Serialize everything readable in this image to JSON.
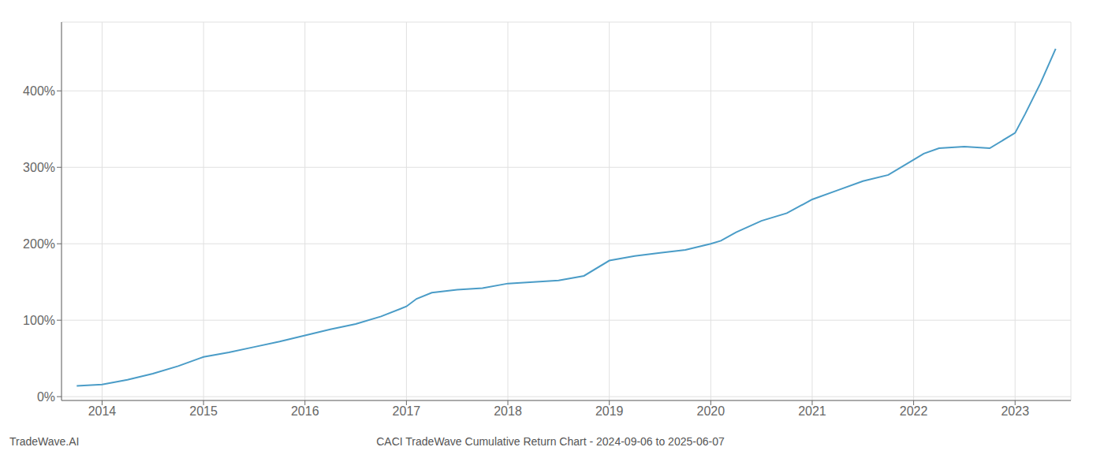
{
  "chart_data": {
    "type": "line",
    "title": "CACI TradeWave Cumulative Return Chart - 2024-09-06 to 2025-06-07",
    "annotations": [
      "TradeWave.AI"
    ],
    "x": [
      2013.75,
      2014.0,
      2014.25,
      2014.5,
      2014.75,
      2015.0,
      2015.25,
      2015.5,
      2015.75,
      2016.0,
      2016.25,
      2016.5,
      2016.75,
      2017.0,
      2017.1,
      2017.25,
      2017.5,
      2017.75,
      2018.0,
      2018.25,
      2018.5,
      2018.75,
      2019.0,
      2019.25,
      2019.5,
      2019.75,
      2020.0,
      2020.1,
      2020.25,
      2020.5,
      2020.75,
      2021.0,
      2021.25,
      2021.5,
      2021.75,
      2022.0,
      2022.1,
      2022.25,
      2022.5,
      2022.75,
      2023.0,
      2023.1,
      2023.25,
      2023.4
    ],
    "values": [
      14,
      16,
      22,
      30,
      40,
      52,
      58,
      65,
      72,
      80,
      88,
      95,
      105,
      118,
      128,
      136,
      140,
      142,
      148,
      150,
      152,
      158,
      178,
      184,
      188,
      192,
      200,
      204,
      215,
      230,
      240,
      258,
      270,
      282,
      290,
      310,
      318,
      325,
      327,
      325,
      345,
      370,
      410,
      455
    ],
    "color": "#4a9cc7",
    "xlim": [
      2013.6,
      2023.55
    ],
    "ylim": [
      -5,
      490
    ],
    "xticks": [
      2014,
      2015,
      2016,
      2017,
      2018,
      2019,
      2020,
      2021,
      2022,
      2023
    ],
    "yticks": [
      {
        "value": 0,
        "label": "0%"
      },
      {
        "value": 100,
        "label": "100%"
      },
      {
        "value": 200,
        "label": "200%"
      },
      {
        "value": 300,
        "label": "300%"
      },
      {
        "value": 400,
        "label": "400%"
      }
    ],
    "grid": true
  }
}
